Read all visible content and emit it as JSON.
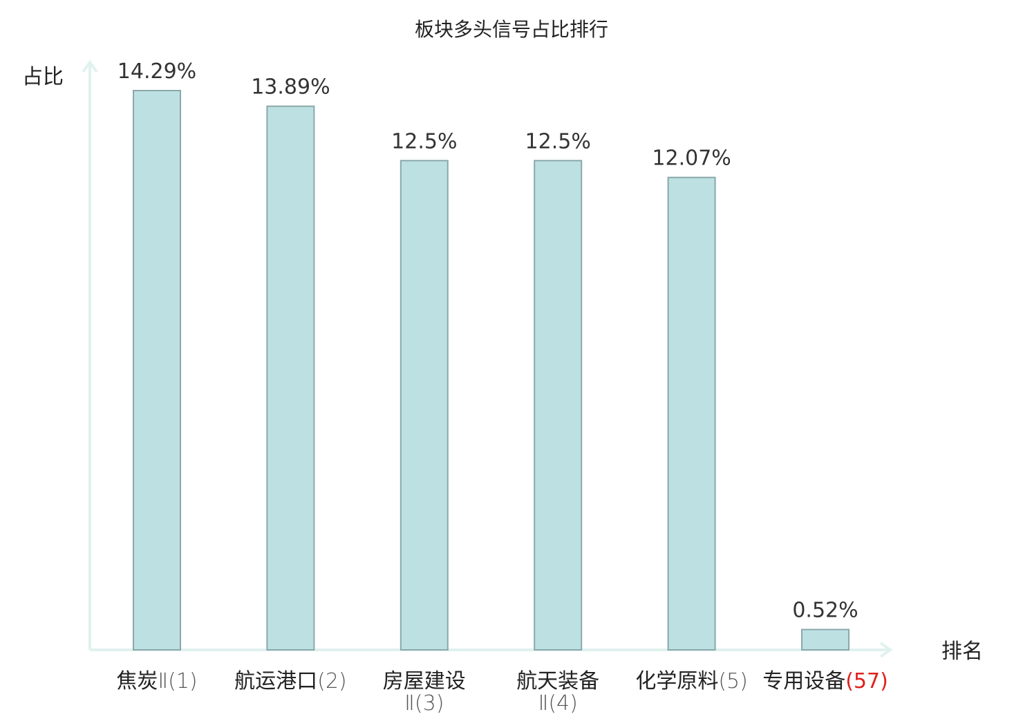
{
  "chart_data": {
    "type": "bar",
    "title": "板块多头信号占比排行",
    "ylabel": "占比",
    "xlabel": "排名",
    "ylim": [
      0,
      14.29
    ],
    "bar_color": "#bde0e3",
    "bar_stroke": "#8aa8aa",
    "axis_color": "#e0f2f0",
    "highlight_color": "#e0201c",
    "categories": [
      {
        "name": "焦炭",
        "suffix": "Ⅱ(1)",
        "lines": [
          "焦炭Ⅱ(1)"
        ],
        "highlight": false
      },
      {
        "name": "航运港口",
        "suffix": "(2)",
        "lines": [
          "航运港口(2)"
        ],
        "highlight": false
      },
      {
        "name": "房屋建设",
        "suffix": "Ⅱ(3)",
        "lines": [
          "房屋建设",
          "Ⅱ(3)"
        ],
        "highlight": false
      },
      {
        "name": "航天装备",
        "suffix": "Ⅱ(4)",
        "lines": [
          "航天装备",
          "Ⅱ(4)"
        ],
        "highlight": false
      },
      {
        "name": "化学原料",
        "suffix": "(5)",
        "lines": [
          "化学原料(5)"
        ],
        "highlight": false
      },
      {
        "name": "专用设备",
        "suffix": "(57)",
        "lines": [
          "专用设备(57)"
        ],
        "highlight": true
      }
    ],
    "values": [
      14.29,
      13.89,
      12.5,
      12.5,
      12.07,
      0.52
    ],
    "labels": [
      "14.29%",
      "13.89%",
      "12.5%",
      "12.5%",
      "12.07%",
      "0.52%"
    ]
  }
}
